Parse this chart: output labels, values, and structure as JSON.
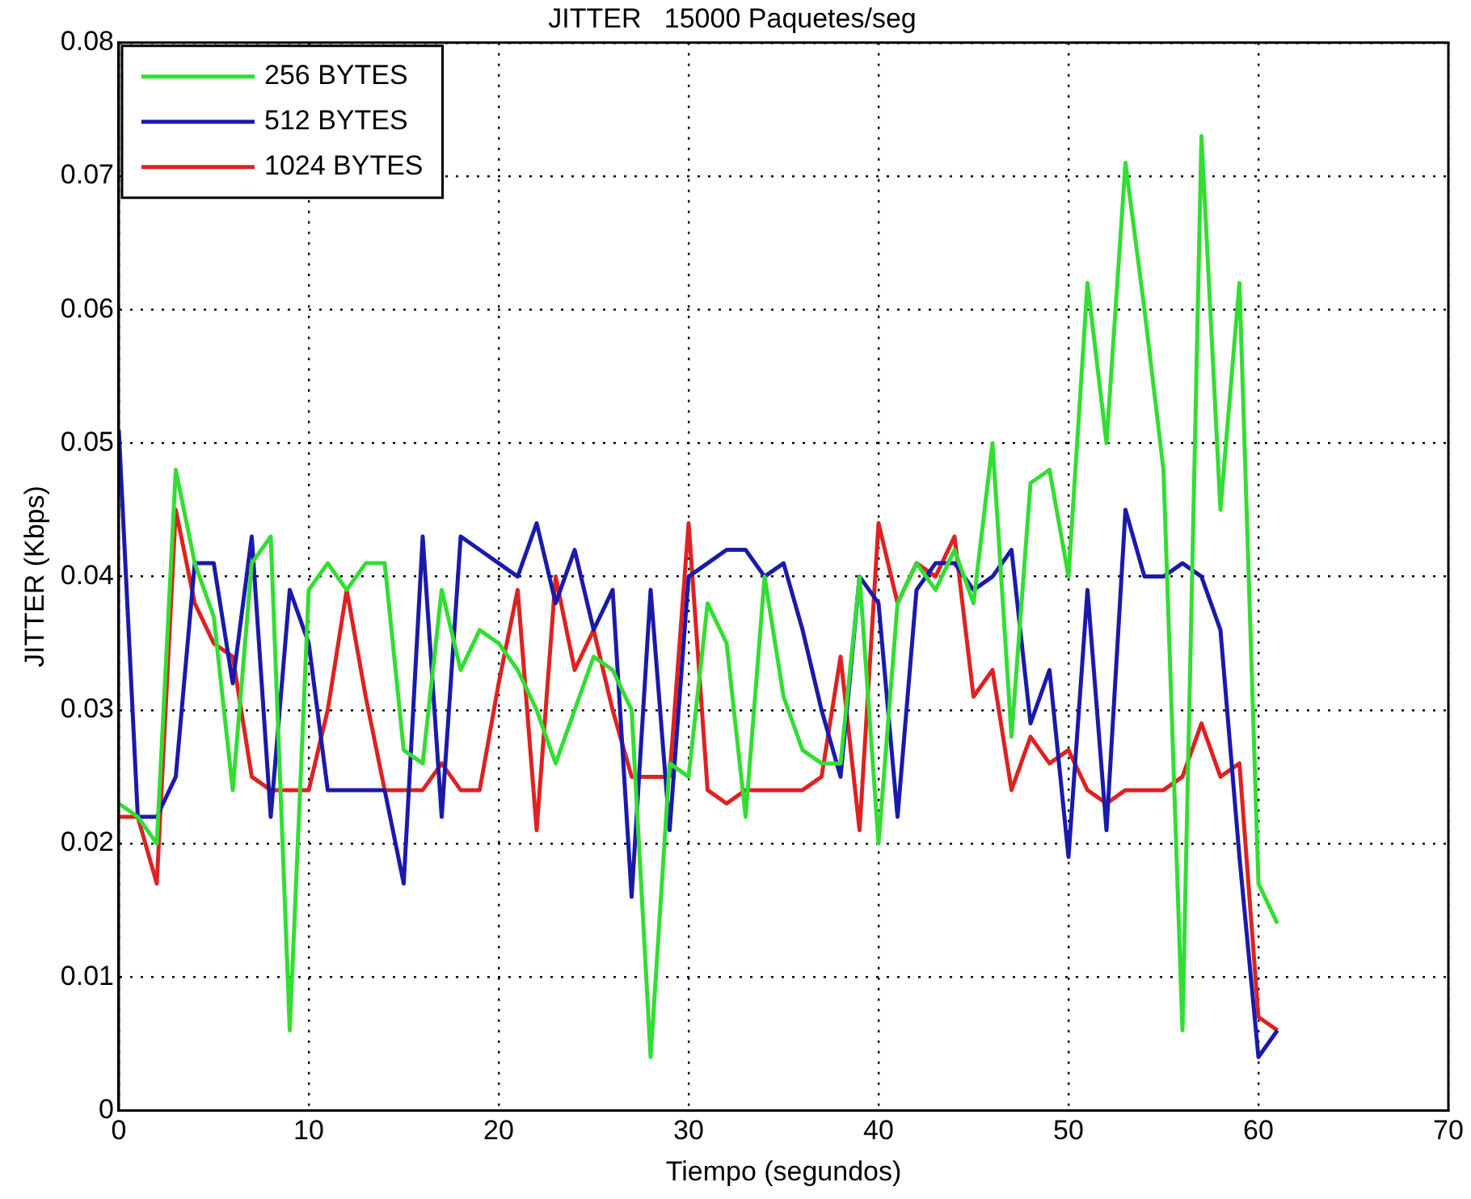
{
  "chart_data": {
    "type": "line",
    "title": "JITTER   15000 Paquetes/seg",
    "xlabel": "Tiempo (segundos)",
    "ylabel": "JITTER (Kbps)",
    "x": [
      0,
      1,
      2,
      3,
      4,
      5,
      6,
      7,
      8,
      9,
      10,
      11,
      12,
      13,
      14,
      15,
      16,
      17,
      18,
      19,
      20,
      21,
      22,
      23,
      24,
      25,
      26,
      27,
      28,
      29,
      30,
      31,
      32,
      33,
      34,
      35,
      36,
      37,
      38,
      39,
      40,
      41,
      42,
      43,
      44,
      45,
      46,
      47,
      48,
      49,
      50,
      51,
      52,
      53,
      54,
      55,
      56,
      57,
      58,
      59,
      60,
      61
    ],
    "series": [
      {
        "name": "256 BYTES",
        "color": "#33dd33",
        "values": [
          0.023,
          0.022,
          0.02,
          0.048,
          0.041,
          0.037,
          0.024,
          0.041,
          0.043,
          0.006,
          0.039,
          0.041,
          0.039,
          0.041,
          0.041,
          0.027,
          0.026,
          0.039,
          0.033,
          0.036,
          0.035,
          0.033,
          0.03,
          0.026,
          0.03,
          0.034,
          0.033,
          0.03,
          0.004,
          0.026,
          0.025,
          0.038,
          0.035,
          0.022,
          0.04,
          0.031,
          0.027,
          0.026,
          0.026,
          0.04,
          0.02,
          0.038,
          0.041,
          0.039,
          0.042,
          0.038,
          0.05,
          0.028,
          0.047,
          0.048,
          0.04,
          0.062,
          0.05,
          0.071,
          0.06,
          0.048,
          0.006,
          0.073,
          0.045,
          0.062,
          0.017,
          0.014
        ]
      },
      {
        "name": "512 BYTES",
        "color": "#1a1aaa",
        "values": [
          0.051,
          0.022,
          0.022,
          0.025,
          0.041,
          0.041,
          0.032,
          0.043,
          0.022,
          0.039,
          0.035,
          0.024,
          0.024,
          0.024,
          0.024,
          0.017,
          0.043,
          0.022,
          0.043,
          0.042,
          0.041,
          0.04,
          0.044,
          0.038,
          0.042,
          0.036,
          0.039,
          0.016,
          0.039,
          0.021,
          0.04,
          0.041,
          0.042,
          0.042,
          0.04,
          0.041,
          0.036,
          0.03,
          0.025,
          0.04,
          0.038,
          0.022,
          0.039,
          0.041,
          0.041,
          0.039,
          0.04,
          0.042,
          0.029,
          0.033,
          0.019,
          0.039,
          0.021,
          0.045,
          0.04,
          0.04,
          0.041,
          0.04,
          0.036,
          0.019,
          0.004,
          0.006
        ]
      },
      {
        "name": "1024 BYTES",
        "color": "#dd2222",
        "values": [
          0.022,
          0.022,
          0.017,
          0.045,
          0.038,
          0.035,
          0.034,
          0.025,
          0.024,
          0.024,
          0.024,
          0.03,
          0.039,
          0.031,
          0.024,
          0.024,
          0.024,
          0.026,
          0.024,
          0.024,
          0.032,
          0.039,
          0.021,
          0.04,
          0.033,
          0.036,
          0.03,
          0.025,
          0.025,
          0.025,
          0.044,
          0.024,
          0.023,
          0.024,
          0.024,
          0.024,
          0.024,
          0.025,
          0.034,
          0.021,
          0.044,
          0.038,
          0.041,
          0.04,
          0.043,
          0.031,
          0.033,
          0.024,
          0.028,
          0.026,
          0.027,
          0.024,
          0.023,
          0.024,
          0.024,
          0.024,
          0.025,
          0.029,
          0.025,
          0.026,
          0.007,
          0.006
        ]
      }
    ],
    "xlim": [
      0,
      70
    ],
    "xticks": [
      0,
      10,
      20,
      30,
      40,
      50,
      60,
      70
    ],
    "ylim": [
      0,
      0.08
    ],
    "yticks": [
      0,
      0.01,
      0.02,
      0.03,
      0.04,
      0.05,
      0.06,
      0.07,
      0.08
    ],
    "grid": true,
    "legend": "top left",
    "marker": "none",
    "line_style": "solid"
  }
}
